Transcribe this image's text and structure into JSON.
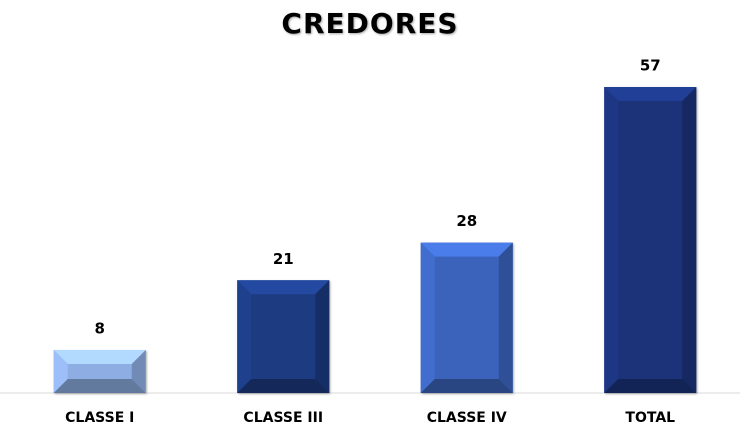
{
  "chart_data": {
    "type": "bar",
    "title": "CREDORES",
    "categories": [
      "CLASSE I",
      "CLASSE III",
      "CLASSE IV",
      "TOTAL"
    ],
    "values": [
      8,
      21,
      28,
      57
    ],
    "colors": [
      "#8eaee3",
      "#1c3a80",
      "#3b64bb",
      "#1a3279"
    ]
  }
}
